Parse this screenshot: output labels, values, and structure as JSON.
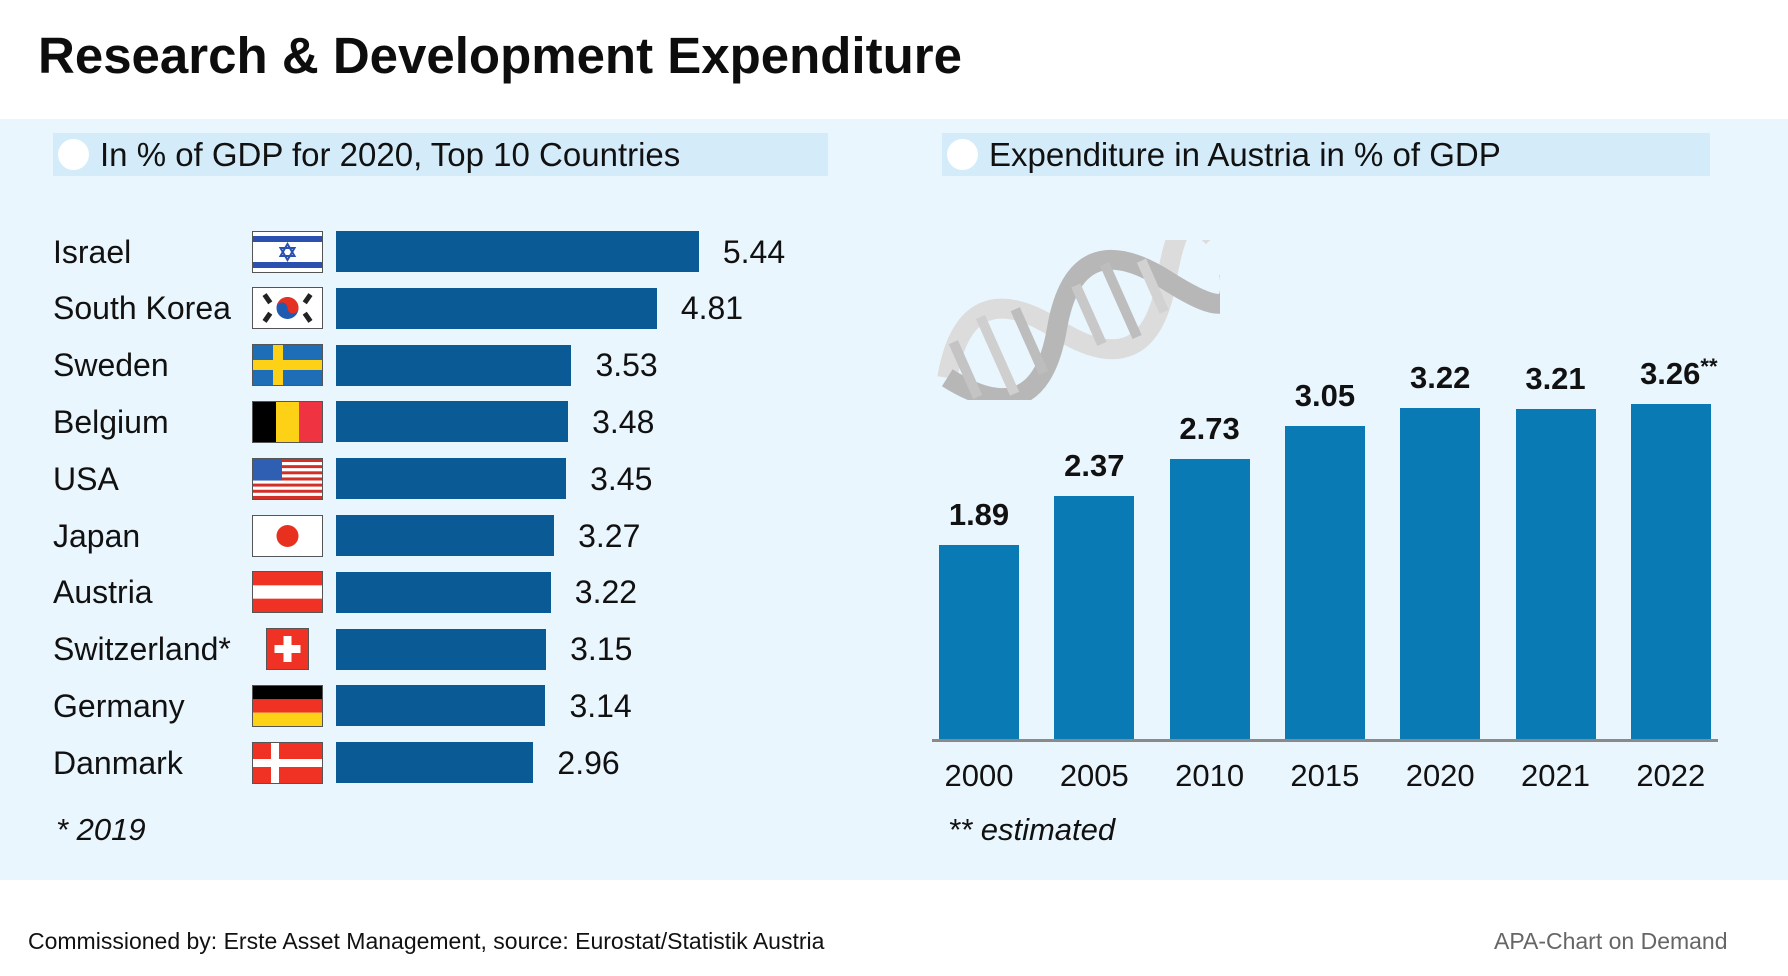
{
  "title": "Research & Development Expenditure",
  "colors": {
    "left_bar": "#0a5a96",
    "right_bar": "#0a7ab4",
    "panel_bg": "#eaf6fd",
    "header_bg": "#d4ecfa"
  },
  "left_panel": {
    "header": "In % of GDP for 2020, Top 10 Countries",
    "footnote": "* 2019"
  },
  "right_panel": {
    "header": "Expenditure in Austria in % of GDP",
    "footnote": "** estimated",
    "decoration": "dna-helix-icon"
  },
  "footer": {
    "source": "Commissioned by: Erste Asset Management, source: Eurostat/Statistik Austria",
    "credit": "APA-Chart on Demand"
  },
  "chart_data": [
    {
      "type": "bar",
      "orientation": "horizontal",
      "title": "In % of GDP for 2020, Top 10 Countries",
      "categories": [
        "Israel",
        "South Korea",
        "Sweden",
        "Belgium",
        "USA",
        "Japan",
        "Austria",
        "Switzerland*",
        "Germany",
        "Danmark"
      ],
      "flags": [
        "israel",
        "south-korea",
        "sweden",
        "belgium",
        "usa",
        "japan",
        "austria",
        "switzerland",
        "germany",
        "denmark"
      ],
      "values": [
        5.44,
        4.81,
        3.53,
        3.48,
        3.45,
        3.27,
        3.22,
        3.15,
        3.14,
        2.96
      ],
      "value_labels": [
        "5.44",
        "4.81",
        "3.53",
        "3.48",
        "3.45",
        "3.27",
        "3.22",
        "3.15",
        "3.14",
        "2.96"
      ],
      "xlabel": "",
      "ylabel": "",
      "xlim": [
        0,
        5.44
      ],
      "grid": false,
      "annotations": [
        "* 2019"
      ]
    },
    {
      "type": "bar",
      "orientation": "vertical",
      "title": "Expenditure in Austria in % of GDP",
      "categories": [
        "2000",
        "2005",
        "2010",
        "2015",
        "2020",
        "2021",
        "2022"
      ],
      "values": [
        1.89,
        2.37,
        2.73,
        3.05,
        3.22,
        3.21,
        3.26
      ],
      "value_labels": [
        "1.89",
        "2.37",
        "2.73",
        "3.05",
        "3.22",
        "3.21",
        "3.26"
      ],
      "value_label_suffix": [
        "",
        "",
        "",
        "",
        "",
        "",
        "**"
      ],
      "xlabel": "",
      "ylabel": "",
      "ylim": [
        0,
        3.26
      ],
      "grid": false,
      "annotations": [
        "** estimated"
      ]
    }
  ]
}
